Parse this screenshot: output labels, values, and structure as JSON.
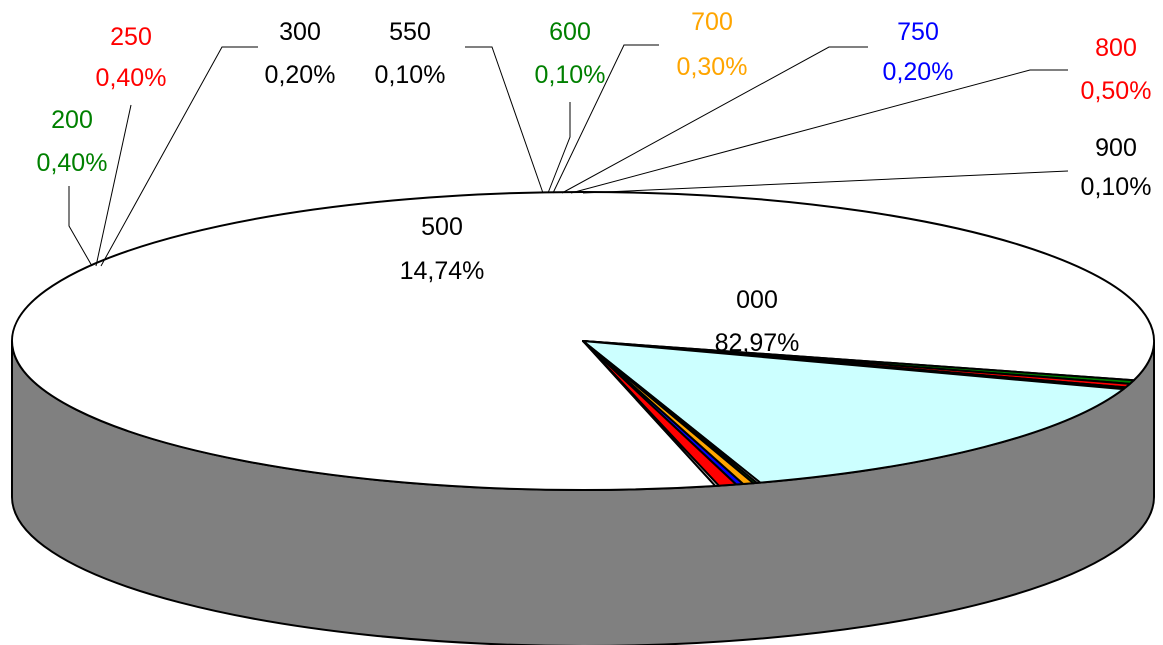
{
  "chart_data": {
    "type": "pie",
    "style": "3d",
    "title": "",
    "slices": [
      {
        "category": "000",
        "percent": 82.97,
        "label_pct": "82,97%",
        "color": "#FFFFFF",
        "text_color": "#000000"
      },
      {
        "category": "200",
        "percent": 0.4,
        "label_pct": "0,40%",
        "color": "#008000",
        "text_color": "#008000"
      },
      {
        "category": "250",
        "percent": 0.4,
        "label_pct": "0,40%",
        "color": "#FF0000",
        "text_color": "#FF0000"
      },
      {
        "category": "300",
        "percent": 0.2,
        "label_pct": "0,20%",
        "color": "#000000",
        "text_color": "#000000"
      },
      {
        "category": "500",
        "percent": 14.74,
        "label_pct": "14,74%",
        "color": "#CCFFFF",
        "text_color": "#000000"
      },
      {
        "category": "550",
        "percent": 0.1,
        "label_pct": "0,10%",
        "color": "#FFFFFF",
        "text_color": "#000000"
      },
      {
        "category": "600",
        "percent": 0.1,
        "label_pct": "0,10%",
        "color": "#008000",
        "text_color": "#008000"
      },
      {
        "category": "700",
        "percent": 0.3,
        "label_pct": "0,30%",
        "color": "#FFA500",
        "text_color": "#FFA500"
      },
      {
        "category": "750",
        "percent": 0.2,
        "label_pct": "0,20%",
        "color": "#0000FF",
        "text_color": "#0000FF"
      },
      {
        "category": "800",
        "percent": 0.5,
        "label_pct": "0,50%",
        "color": "#FF0000",
        "text_color": "#FF0000"
      },
      {
        "category": "900",
        "percent": 0.1,
        "label_pct": "0,10%",
        "color": "#FFFFFF",
        "text_color": "#000000"
      }
    ],
    "side_color": "#808080",
    "outline_color": "#000000",
    "legend": "none"
  }
}
